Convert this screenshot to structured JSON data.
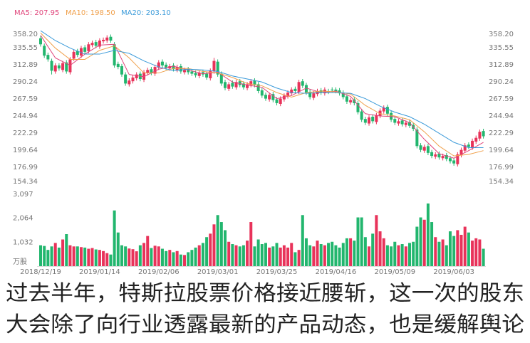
{
  "chart_data": [
    {
      "type": "candlestick",
      "up_color": "#e8335a",
      "down_color": "#22b66e",
      "categories": [
        "2018/12/19",
        null,
        null,
        null,
        null,
        null,
        null,
        null,
        null,
        null,
        null,
        null,
        null,
        null,
        null,
        null,
        "2019/01/14",
        null,
        null,
        null,
        null,
        null,
        null,
        null,
        null,
        null,
        null,
        null,
        null,
        null,
        null,
        null,
        "2019/02/06",
        null,
        null,
        null,
        null,
        null,
        null,
        null,
        null,
        null,
        null,
        null,
        null,
        null,
        null,
        null,
        "2019/03/01",
        null,
        null,
        null,
        null,
        null,
        null,
        null,
        null,
        null,
        null,
        null,
        null,
        null,
        null,
        null,
        "2019/03/25",
        null,
        null,
        null,
        null,
        null,
        null,
        null,
        null,
        null,
        null,
        null,
        null,
        null,
        null,
        null,
        "2019/04/16",
        null,
        null,
        null,
        null,
        null,
        null,
        null,
        null,
        null,
        null,
        null,
        null,
        null,
        null,
        null,
        "2019/05/09",
        null,
        null,
        null,
        null,
        null,
        null,
        null,
        null,
        null,
        null,
        null,
        null,
        null,
        null,
        null,
        "2019/06/03",
        null,
        null,
        null,
        null,
        null,
        null,
        null,
        null
      ],
      "open": [
        348,
        338,
        326,
        318,
        304,
        312,
        306,
        316,
        303,
        321,
        331,
        325,
        336,
        331,
        339,
        343,
        337,
        344,
        345,
        350,
        340,
        314,
        311,
        300,
        287,
        291,
        295,
        301,
        293,
        302,
        307,
        301,
        309,
        317,
        313,
        308,
        312,
        306,
        311,
        303,
        307,
        304,
        302,
        298,
        303,
        301,
        295,
        304,
        317,
        301,
        290,
        281,
        289,
        283,
        291,
        288,
        282,
        286,
        292,
        287,
        279,
        273,
        267,
        274,
        267,
        261,
        267,
        271,
        275,
        281,
        277,
        291,
        286,
        277,
        269,
        274,
        279,
        275,
        278,
        280,
        280,
        279,
        276,
        271,
        263,
        267,
        262,
        251,
        241,
        235,
        244,
        237,
        245,
        251,
        257,
        249,
        241,
        235,
        239,
        233,
        237,
        233,
        227,
        206,
        199,
        205,
        197,
        191,
        195,
        189,
        193,
        189,
        186,
        181,
        193,
        199,
        207,
        203,
        211,
        215,
        225
      ],
      "high": [
        351,
        341,
        329,
        321,
        315,
        315,
        318,
        319,
        323,
        333,
        334,
        338,
        339,
        343,
        345,
        346,
        348,
        349,
        352,
        353,
        343,
        317,
        314,
        303,
        295,
        299,
        303,
        304,
        306,
        309,
        310,
        313,
        319,
        320,
        316,
        314,
        315,
        313,
        314,
        309,
        310,
        307,
        305,
        305,
        306,
        304,
        308,
        322,
        320,
        304,
        293,
        290,
        292,
        293,
        294,
        291,
        290,
        294,
        295,
        290,
        282,
        276,
        276,
        277,
        270,
        271,
        275,
        279,
        283,
        284,
        293,
        294,
        289,
        280,
        278,
        281,
        282,
        283,
        281,
        283,
        283,
        282,
        279,
        274,
        269,
        270,
        265,
        254,
        244,
        246,
        247,
        249,
        255,
        259,
        260,
        252,
        244,
        241,
        242,
        239,
        240,
        236,
        230,
        209,
        207,
        208,
        200,
        197,
        198,
        195,
        196,
        192,
        189,
        197,
        203,
        209,
        210,
        215,
        219,
        227,
        228
      ],
      "low": [
        337,
        322,
        317,
        300,
        301,
        305,
        303,
        301,
        300,
        318,
        323,
        322,
        327,
        328,
        336,
        335,
        334,
        341,
        342,
        342,
        309,
        307,
        297,
        285,
        284,
        288,
        292,
        291,
        290,
        299,
        299,
        298,
        306,
        309,
        306,
        305,
        304,
        303,
        301,
        300,
        300,
        298,
        296,
        295,
        297,
        293,
        292,
        301,
        297,
        285,
        279,
        278,
        281,
        280,
        283,
        280,
        279,
        283,
        283,
        275,
        269,
        265,
        264,
        263,
        259,
        258,
        264,
        268,
        272,
        275,
        274,
        282,
        273,
        267,
        266,
        271,
        273,
        272,
        274,
        276,
        275,
        272,
        267,
        261,
        260,
        259,
        247,
        237,
        233,
        232,
        235,
        234,
        242,
        248,
        245,
        237,
        233,
        232,
        231,
        230,
        229,
        225,
        202,
        197,
        196,
        193,
        189,
        188,
        187,
        186,
        185,
        182,
        179,
        178,
        190,
        196,
        201,
        200,
        208,
        212,
        215
      ],
      "close": [
        340,
        325,
        320,
        305,
        312,
        308,
        315,
        304,
        320,
        330,
        326,
        335,
        330,
        340,
        342,
        338,
        345,
        346,
        349,
        345,
        312,
        310,
        300,
        288,
        292,
        296,
        300,
        294,
        303,
        306,
        302,
        310,
        316,
        312,
        309,
        311,
        307,
        310,
        304,
        306,
        303,
        301,
        299,
        302,
        300,
        296,
        305,
        318,
        300,
        288,
        282,
        287,
        284,
        290,
        286,
        283,
        287,
        291,
        286,
        278,
        272,
        268,
        273,
        266,
        262,
        268,
        272,
        276,
        280,
        278,
        290,
        285,
        276,
        270,
        275,
        278,
        276,
        280,
        277,
        279,
        278,
        275,
        270,
        264,
        266,
        262,
        250,
        240,
        236,
        243,
        238,
        246,
        252,
        256,
        248,
        240,
        236,
        238,
        234,
        236,
        232,
        228,
        205,
        200,
        204,
        196,
        192,
        194,
        190,
        192,
        188,
        185,
        182,
        194,
        200,
        206,
        204,
        212,
        216,
        224,
        218
      ],
      "series": [
        {
          "name": "MA5: 207.95",
          "color": "#e0457b",
          "x": [
            0,
            4,
            8,
            12,
            16,
            20,
            24,
            28,
            32,
            36,
            40,
            44,
            48,
            52,
            56,
            60,
            64,
            68,
            72,
            76,
            80,
            84,
            88,
            92,
            96,
            100,
            104,
            108,
            112,
            116,
            120
          ],
          "values": [
            352,
            322,
            312,
            327,
            339,
            340,
            300,
            297,
            307,
            311,
            306,
            301,
            303,
            290,
            286,
            283,
            268,
            272,
            282,
            276,
            278,
            271,
            248,
            245,
            244,
            236,
            214,
            195,
            189,
            199,
            210
          ]
        },
        {
          "name": "MA10: 198.50",
          "color": "#f0a04b",
          "x": [
            0,
            4,
            8,
            12,
            16,
            20,
            24,
            28,
            32,
            36,
            40,
            44,
            48,
            52,
            56,
            60,
            64,
            68,
            72,
            76,
            80,
            84,
            88,
            92,
            96,
            100,
            104,
            108,
            112,
            116,
            120
          ],
          "values": [
            355,
            335,
            320,
            320,
            332,
            338,
            322,
            302,
            302,
            308,
            308,
            304,
            302,
            296,
            288,
            285,
            276,
            270,
            276,
            278,
            277,
            274,
            259,
            248,
            245,
            240,
            224,
            205,
            192,
            194,
            199
          ]
        },
        {
          "name": "MA20: 203.10",
          "color": "#3a9ad9",
          "x": [
            0,
            4,
            8,
            12,
            16,
            20,
            24,
            28,
            32,
            36,
            40,
            44,
            48,
            52,
            56,
            60,
            64,
            68,
            72,
            76,
            80,
            84,
            88,
            92,
            96,
            100,
            104,
            108,
            112,
            116,
            120
          ],
          "values": [
            358,
            345,
            335,
            327,
            327,
            332,
            328,
            318,
            310,
            305,
            307,
            306,
            304,
            298,
            294,
            290,
            282,
            276,
            275,
            276,
            276,
            275,
            268,
            258,
            250,
            244,
            234,
            222,
            210,
            203,
            203
          ]
        }
      ],
      "ylim": [
        154.34,
        358.2
      ],
      "yticks": [
        {
          "value": 358.2,
          "label": "358.20"
        },
        335.55,
        312.89,
        290.24,
        267.59,
        244.94,
        222.29,
        199.64,
        176.99,
        154.34
      ]
    },
    {
      "type": "bar",
      "values": [
        900,
        870,
        700,
        850,
        1000,
        800,
        1150,
        1380,
        900,
        850,
        850,
        820,
        800,
        750,
        780,
        720,
        700,
        650,
        560,
        500,
        2400,
        1450,
        900,
        850,
        760,
        730,
        640,
        900,
        1000,
        1300,
        780,
        880,
        850,
        750,
        650,
        700,
        600,
        650,
        500,
        480,
        600,
        700,
        800,
        900,
        1000,
        1250,
        1400,
        1800,
        2200,
        1900,
        1550,
        1050,
        950,
        900,
        850,
        900,
        1100,
        1900,
        850,
        1150,
        950,
        1000,
        800,
        850,
        1000,
        800,
        900,
        800,
        1000,
        600,
        700,
        2200,
        1200,
        900,
        850,
        1100,
        950,
        900,
        1000,
        1050,
        900,
        800,
        1000,
        1200,
        1200,
        1100,
        2100,
        2100,
        1250,
        850,
        1400,
        2200,
        1500,
        1200,
        900,
        850,
        1050,
        900,
        950,
        850,
        1000,
        1050,
        1700,
        2100,
        2000,
        2700,
        1900,
        1250,
        1050,
        1150,
        900,
        1500,
        1300,
        1550,
        1350,
        1700,
        1450,
        1100,
        1200,
        1150,
        750
      ],
      "ylim": [
        0,
        3097
      ],
      "yticks": [
        {
          "value": 3097,
          "label": "3,097"
        },
        {
          "value": 2064,
          "label": "2,064"
        },
        {
          "value": 1032,
          "label": "1,032"
        },
        {
          "value": 0,
          "label": "万股"
        }
      ]
    }
  ],
  "article": {
    "lines": [
      "过去半年，特斯拉股票价格接近腰斩，这一次的股东",
      "大会除了向行业透露最新的产品动态，也是缓解舆论"
    ]
  }
}
